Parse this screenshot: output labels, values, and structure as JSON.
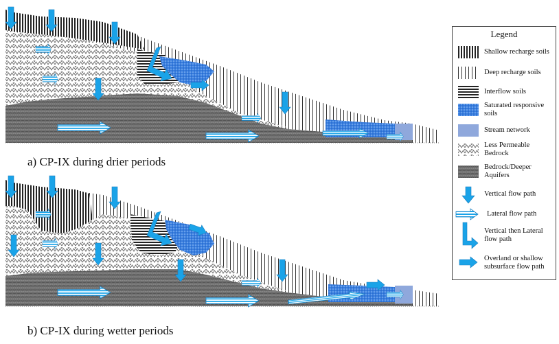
{
  "captions": {
    "a": "a) CP-IX during drier periods",
    "b": "b) CP-IX during wetter periods"
  },
  "legend": {
    "title": "Legend",
    "items": [
      {
        "key": "shallow",
        "label": "Shallow recharge soils"
      },
      {
        "key": "deep",
        "label": "Deep recharge soils"
      },
      {
        "key": "interflow",
        "label": "Interflow soils"
      },
      {
        "key": "saturated",
        "label": "Saturated responsive soils"
      },
      {
        "key": "stream",
        "label": "Stream network"
      },
      {
        "key": "lessperm",
        "label": "Less Permeable Bedrock"
      },
      {
        "key": "bedrock",
        "label": "Bedrock/Deeper Aquifers"
      },
      {
        "key": "vertical",
        "label": "Vertical flow path"
      },
      {
        "key": "lateral",
        "label": "Lateral flow path"
      },
      {
        "key": "vertlat",
        "label": "Vertical then Lateral flow path"
      },
      {
        "key": "overland",
        "label": "Overland or shallow subsurface flow path"
      }
    ]
  },
  "colors": {
    "arrow_blue": "#1aa3e8",
    "saturated_blue": "#3a7fe0",
    "stream_blue": "#8fa8dc",
    "pattern_dark": "#222222"
  }
}
